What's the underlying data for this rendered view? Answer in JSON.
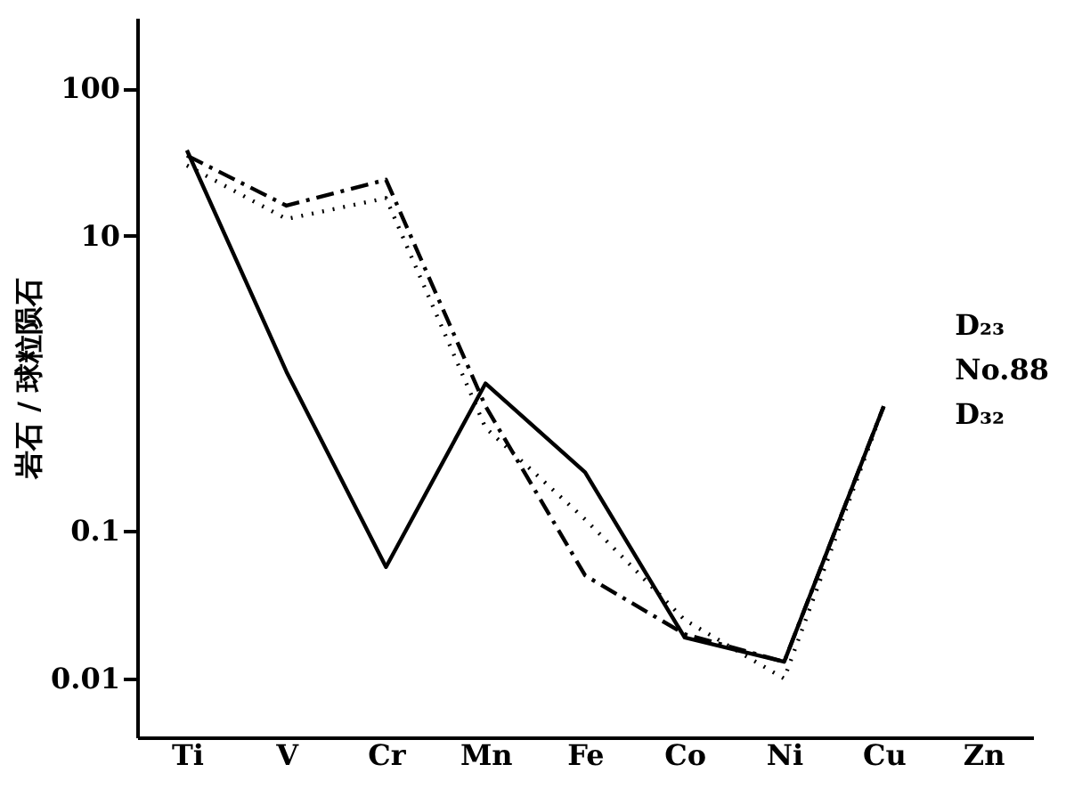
{
  "chart_data": {
    "type": "line",
    "ylabel": "岩石 / 球粒陨石",
    "log": true,
    "categories": [
      "Ti",
      "V",
      "Cr",
      "Mn",
      "Fe",
      "Co",
      "Ni",
      "Cu",
      "Zn"
    ],
    "ylim": [
      0.004,
      300
    ],
    "yticks": [
      0.01,
      0.1,
      10,
      100
    ],
    "grid": false,
    "marker": "none",
    "series": [
      {
        "name": "D₂₃",
        "color": "#000000",
        "line_style": "dashed",
        "values": [
          35,
          16,
          24,
          0.7,
          0.05,
          0.02,
          0.013,
          0.7,
          null
        ]
      },
      {
        "name": "No.88",
        "color": "#000000",
        "line_style": "dotted",
        "values": [
          30,
          13,
          18,
          0.5,
          0.12,
          0.025,
          0.01,
          0.7,
          null
        ]
      },
      {
        "name": "D₃₂",
        "color": "#000000",
        "line_style": "solid",
        "values": [
          38,
          1.2,
          0.057,
          1.0,
          0.25,
          0.019,
          0.013,
          0.7,
          null
        ]
      }
    ]
  }
}
